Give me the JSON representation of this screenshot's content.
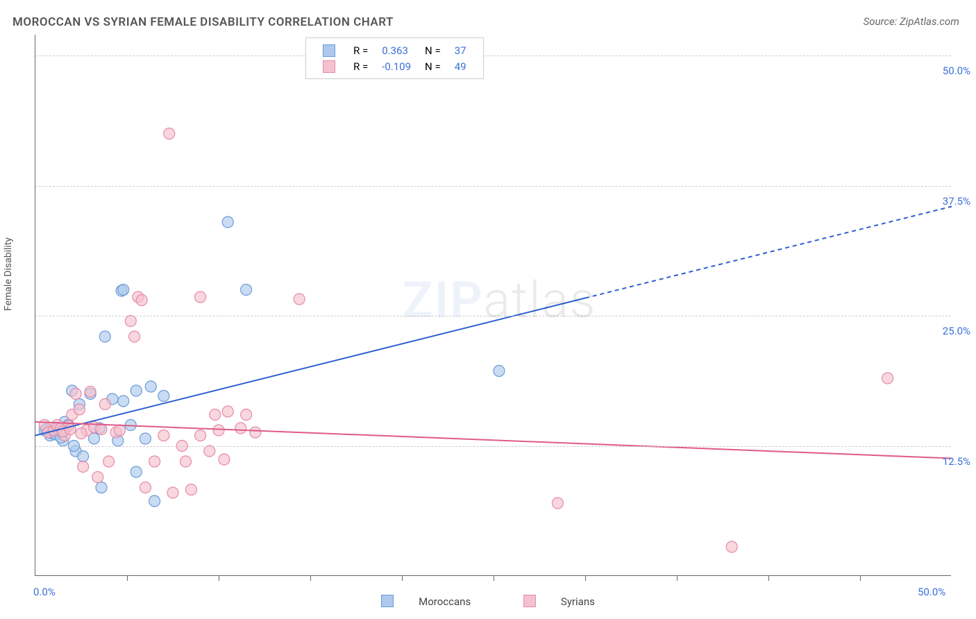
{
  "title": "MOROCCAN VS SYRIAN FEMALE DISABILITY CORRELATION CHART",
  "source": "Source: ZipAtlas.com",
  "ylabel": "Female Disability",
  "watermark_bold": "ZIP",
  "watermark_rest": "atlas",
  "chart": {
    "type": "scatter-with-regression",
    "xlim": [
      0,
      50
    ],
    "ylim": [
      0,
      52
    ],
    "x_origin_label": "0.0%",
    "x_max_label": "50.0%",
    "y_ticks": [
      {
        "value": 12.5,
        "label": "12.5%"
      },
      {
        "value": 25.0,
        "label": "25.0%"
      },
      {
        "value": 37.5,
        "label": "37.5%"
      },
      {
        "value": 50.0,
        "label": "50.0%"
      }
    ],
    "x_ticks_minor": [
      5,
      10,
      15,
      20,
      25,
      30,
      35,
      40,
      45
    ],
    "grid_color": "#cccccc",
    "axis_color": "#666666",
    "background_color": "#ffffff",
    "tick_label_color": "#3b6fd9",
    "series": [
      {
        "name": "Moroccans",
        "marker_fill": "#aec9ed",
        "marker_stroke": "#6a9bd8",
        "marker_opacity": 0.65,
        "marker_radius": 8,
        "line_color": "#2a5fd0",
        "line_width": 2,
        "R": "0.363",
        "N": "37",
        "regression": {
          "x1": 0,
          "y1": 13.5,
          "x2": 50,
          "y2": 35.5,
          "solid_until_x": 30
        },
        "points": [
          [
            0.5,
            14.0
          ],
          [
            0.8,
            13.5
          ],
          [
            1.0,
            13.8
          ],
          [
            1.2,
            14.2
          ],
          [
            1.5,
            13.0
          ],
          [
            1.6,
            14.8
          ],
          [
            1.8,
            14.5
          ],
          [
            2.0,
            17.8
          ],
          [
            2.2,
            12.0
          ],
          [
            2.4,
            16.5
          ],
          [
            2.6,
            11.5
          ],
          [
            3.0,
            17.5
          ],
          [
            3.2,
            13.2
          ],
          [
            3.5,
            14.2
          ],
          [
            3.6,
            8.5
          ],
          [
            3.8,
            23.0
          ],
          [
            4.2,
            17.0
          ],
          [
            4.5,
            13.0
          ],
          [
            4.7,
            27.4
          ],
          [
            4.8,
            27.5
          ],
          [
            4.8,
            16.8
          ],
          [
            5.2,
            14.5
          ],
          [
            5.5,
            17.8
          ],
          [
            5.5,
            10.0
          ],
          [
            6.0,
            13.2
          ],
          [
            6.3,
            18.2
          ],
          [
            6.5,
            7.2
          ],
          [
            7.0,
            17.3
          ],
          [
            10.5,
            34.0
          ],
          [
            11.5,
            27.5
          ],
          [
            25.3,
            19.7
          ],
          [
            0.6,
            14.1
          ],
          [
            0.9,
            13.7
          ],
          [
            1.1,
            13.6
          ],
          [
            1.3,
            14.0
          ],
          [
            1.4,
            13.3
          ],
          [
            2.1,
            12.5
          ]
        ]
      },
      {
        "name": "Syrians",
        "marker_fill": "#f5c1ce",
        "marker_stroke": "#e68aa5",
        "marker_opacity": 0.65,
        "marker_radius": 8,
        "line_color": "#e05a87",
        "line_width": 2,
        "R": "-0.109",
        "N": "49",
        "regression": {
          "x1": 0,
          "y1": 14.8,
          "x2": 50,
          "y2": 11.3,
          "solid_until_x": 50
        },
        "points": [
          [
            0.5,
            14.5
          ],
          [
            0.7,
            13.8
          ],
          [
            1.0,
            14.0
          ],
          [
            1.2,
            14.5
          ],
          [
            1.4,
            14.2
          ],
          [
            1.6,
            13.5
          ],
          [
            1.8,
            14.4
          ],
          [
            2.0,
            15.5
          ],
          [
            2.2,
            17.5
          ],
          [
            2.4,
            16.0
          ],
          [
            2.6,
            10.5
          ],
          [
            2.8,
            14.0
          ],
          [
            3.0,
            17.7
          ],
          [
            3.2,
            14.3
          ],
          [
            3.4,
            9.5
          ],
          [
            3.8,
            16.5
          ],
          [
            4.0,
            11.0
          ],
          [
            4.4,
            13.8
          ],
          [
            4.6,
            14.0
          ],
          [
            5.2,
            24.5
          ],
          [
            5.4,
            23.0
          ],
          [
            5.6,
            26.8
          ],
          [
            5.8,
            26.5
          ],
          [
            6.0,
            8.5
          ],
          [
            6.5,
            11.0
          ],
          [
            7.0,
            13.5
          ],
          [
            7.3,
            42.5
          ],
          [
            7.5,
            8.0
          ],
          [
            8.0,
            12.5
          ],
          [
            8.2,
            11.0
          ],
          [
            8.5,
            8.3
          ],
          [
            9.0,
            13.5
          ],
          [
            9.0,
            26.8
          ],
          [
            9.5,
            12.0
          ],
          [
            9.8,
            15.5
          ],
          [
            10.0,
            14.0
          ],
          [
            10.3,
            11.2
          ],
          [
            10.5,
            15.8
          ],
          [
            11.2,
            14.2
          ],
          [
            11.5,
            15.5
          ],
          [
            12.0,
            13.8
          ],
          [
            14.4,
            26.6
          ],
          [
            28.5,
            7.0
          ],
          [
            38.0,
            2.8
          ],
          [
            46.5,
            19.0
          ],
          [
            1.5,
            13.9
          ],
          [
            1.9,
            14.1
          ],
          [
            2.5,
            13.7
          ],
          [
            3.6,
            14.1
          ]
        ]
      }
    ],
    "legend_top_labels": {
      "R": "R =",
      "N": "N ="
    },
    "legend_bottom": [
      "Moroccans",
      "Syrians"
    ]
  }
}
